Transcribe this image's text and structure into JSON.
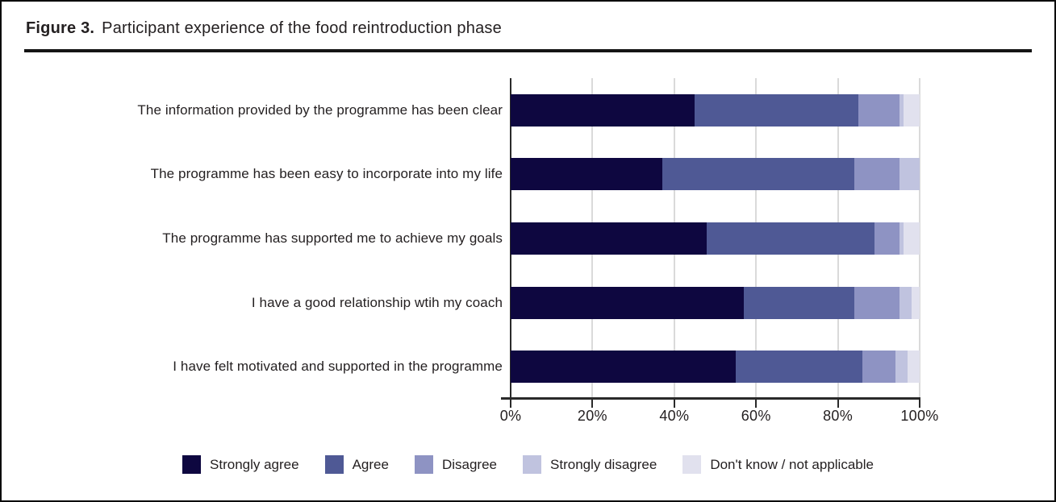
{
  "figure": {
    "label": "Figure 3.",
    "title": "Participant experience of the food reintroduction phase"
  },
  "chart_data": {
    "type": "bar",
    "orientation": "horizontal",
    "stacked": true,
    "unit": "percent",
    "title": "Participant experience of the food reintroduction phase",
    "categories": [
      "The information provided by the programme has been clear",
      "The programme has been easy to incorporate into my life",
      "The programme has supported me to achieve my goals",
      "I have a good relationship wtih my coach",
      "I have felt motivated and supported in the programme"
    ],
    "series": [
      {
        "name": "Strongly agree",
        "color": "#0e0740",
        "values": [
          45,
          37,
          48,
          57,
          55
        ]
      },
      {
        "name": "Agree",
        "color": "#4f5995",
        "values": [
          40,
          47,
          41,
          27,
          31
        ]
      },
      {
        "name": "Disagree",
        "color": "#8e93c3",
        "values": [
          10,
          11,
          6,
          11,
          8
        ]
      },
      {
        "name": "Strongly disagree",
        "color": "#c0c3df",
        "values": [
          1,
          5,
          1,
          3,
          3
        ]
      },
      {
        "name": "Don't know / not applicable",
        "color": "#e1e1ee",
        "values": [
          4,
          0,
          4,
          2,
          3
        ]
      }
    ],
    "x_axis": {
      "min": 0,
      "max": 100,
      "tick_labels": [
        "0%",
        "20%",
        "40%",
        "60%",
        "80%",
        "100%"
      ],
      "tick_values": [
        0,
        20,
        40,
        60,
        80,
        100
      ]
    },
    "grid": true,
    "legend_position": "bottom"
  }
}
